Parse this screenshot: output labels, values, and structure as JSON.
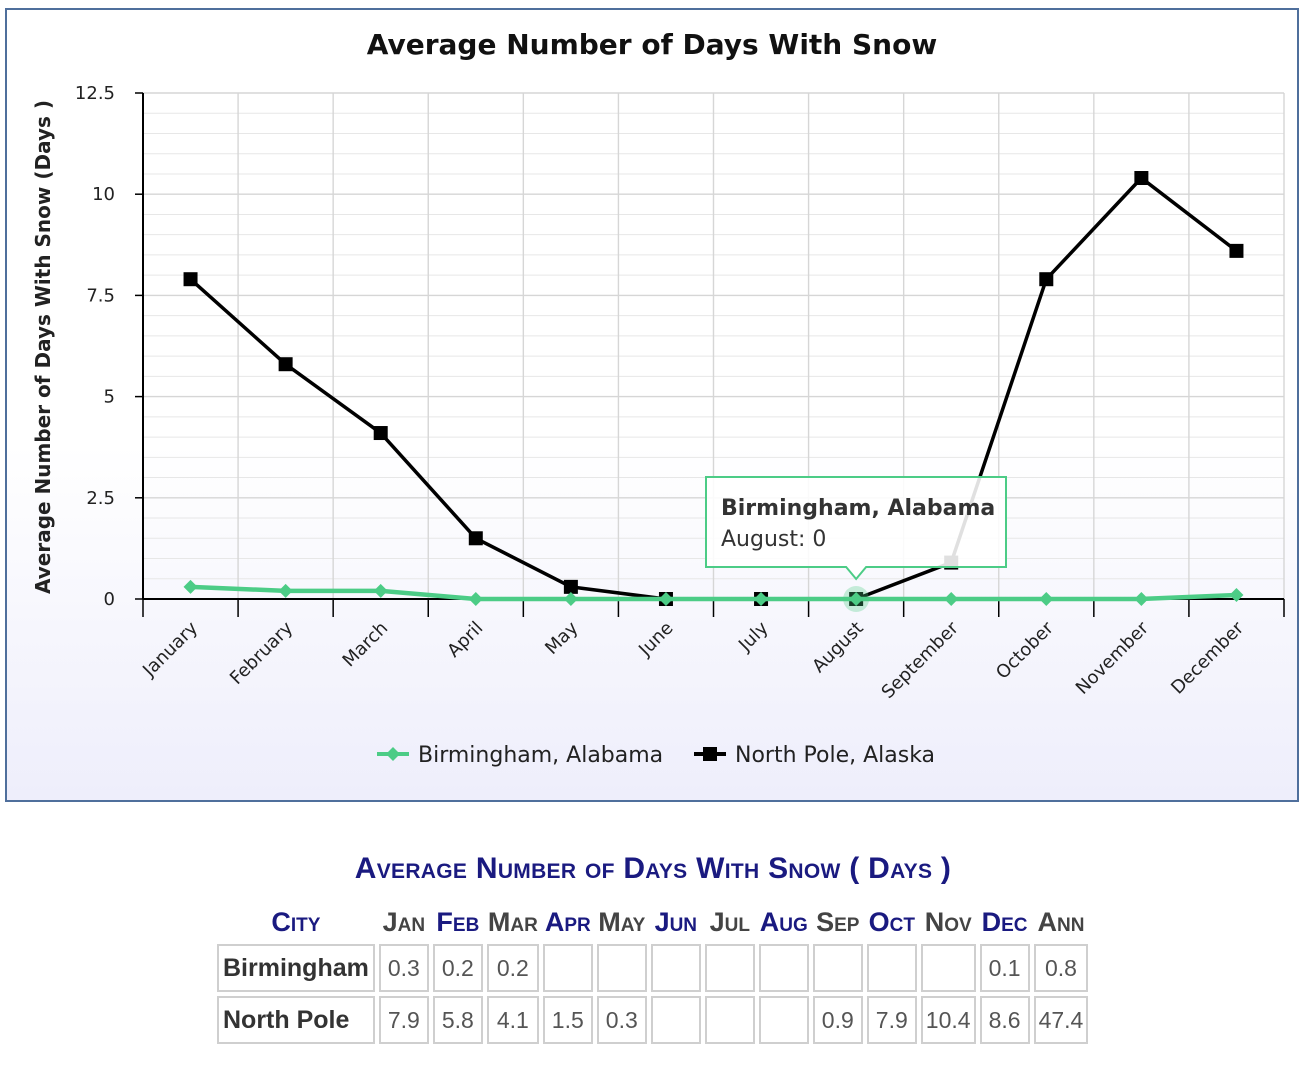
{
  "chart_data": {
    "type": "line",
    "title": "Average Number of Days With Snow",
    "ylabel": "Average Number of Days With Snow (Days )",
    "xlabel": "",
    "ylim": [
      0,
      12.5
    ],
    "yticks": [
      "0",
      "2.5",
      "5",
      "7.5",
      "10",
      "12.5"
    ],
    "ytick_values": [
      0,
      2.5,
      5,
      7.5,
      10,
      12.5
    ],
    "categories": [
      "January",
      "February",
      "March",
      "April",
      "May",
      "June",
      "July",
      "August",
      "September",
      "October",
      "November",
      "December"
    ],
    "grid": true,
    "legend_position": "bottom",
    "series": [
      {
        "name": "Birmingham, Alabama",
        "color": "#4ccc86",
        "marker": "diamond",
        "values": [
          0.3,
          0.2,
          0.2,
          0,
          0,
          0,
          0,
          0,
          0,
          0,
          0,
          0.1
        ]
      },
      {
        "name": "North Pole, Alaska",
        "color": "#000000",
        "marker": "square",
        "values": [
          7.9,
          5.8,
          4.1,
          1.5,
          0.3,
          0,
          0,
          0,
          0.9,
          7.9,
          10.4,
          8.6
        ]
      }
    ],
    "tooltip": {
      "title": "Birmingham, Alabama",
      "text": "August: 0",
      "series_index": 0,
      "point_index": 7
    }
  },
  "table": {
    "title": "Average Number of Days With Snow ( Days )",
    "headers": [
      "City",
      "Jan",
      "Feb",
      "Mar",
      "Apr",
      "May",
      "Jun",
      "Jul",
      "Aug",
      "Sep",
      "Oct",
      "Nov",
      "Dec",
      "Ann"
    ],
    "header_colors": [
      "#1a1a80",
      "#444444",
      "#1a1a80",
      "#444444",
      "#1a1a80",
      "#444444",
      "#1a1a80",
      "#444444",
      "#1a1a80",
      "#444444",
      "#1a1a80",
      "#444444",
      "#1a1a80",
      "#444444"
    ],
    "rows": [
      {
        "city": "Birmingham",
        "values": [
          "0.3",
          "0.2",
          "0.2",
          "",
          "",
          "",
          "",
          "",
          "",
          "",
          "",
          "0.1",
          "0.8"
        ]
      },
      {
        "city": "North Pole",
        "values": [
          "7.9",
          "5.8",
          "4.1",
          "1.5",
          "0.3",
          "",
          "",
          "",
          "0.9",
          "7.9",
          "10.4",
          "8.6",
          "47.4"
        ]
      }
    ]
  }
}
